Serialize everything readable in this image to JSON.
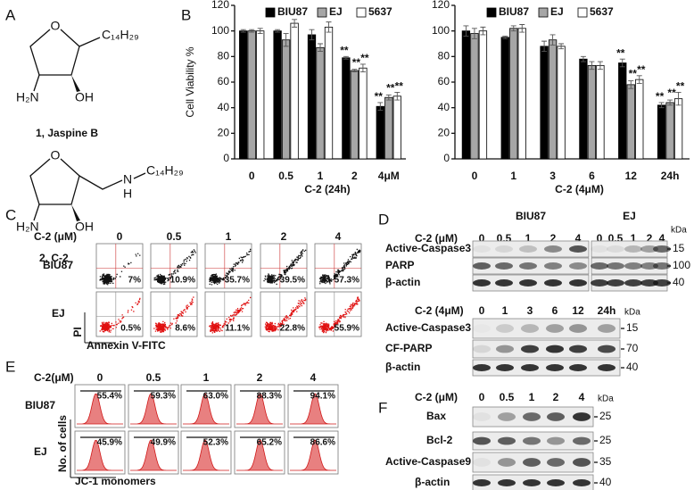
{
  "panels": {
    "a": {
      "label": "A",
      "compound1": {
        "substituent": "C₁₄H₂₉",
        "amine": "H₂N",
        "hydroxyl": "OH",
        "oxygen": "O",
        "caption": "1,  Jaspine B"
      },
      "compound2": {
        "substituent": "C₁₄H₂₉",
        "nitrogen": "N",
        "hydrogen": "H",
        "amine": "H₂N",
        "hydroxyl": "OH",
        "oxygen": "O",
        "caption": "2, C-2"
      }
    },
    "b": {
      "label": "B"
    },
    "c": {
      "label": "C",
      "treatment": "C-2 (μM)",
      "doses": [
        "0",
        "0.5",
        "1",
        "2",
        "4"
      ],
      "rows": [
        {
          "name": "BIU87",
          "values": [
            "7%",
            "10.9%",
            "35.7%",
            "39.5%",
            "57.3%"
          ]
        },
        {
          "name": "EJ",
          "values": [
            "0.5%",
            "8.6%",
            "11.1%",
            "22.8%",
            "55.9%"
          ]
        }
      ],
      "y_label": "PI",
      "x_label": "Annexin V-FITC"
    },
    "d": {
      "label": "D",
      "top": {
        "treatment": "C-2 (μM)",
        "unit": "kDa",
        "groups": [
          {
            "name": "BIU87",
            "lanes": [
              "0",
              "0.5",
              "1",
              "2",
              "4"
            ]
          },
          {
            "name": "EJ",
            "lanes": [
              "0",
              "0.5",
              "1",
              "2",
              "4"
            ]
          }
        ],
        "rows": [
          {
            "name": "Active-Caspase3",
            "kda": "15"
          },
          {
            "name": "PARP",
            "kda": "100"
          },
          {
            "name": "β-actin",
            "kda": "40"
          }
        ]
      },
      "bottom": {
        "treatment": "C-2 (4μM)",
        "unit": "kDa",
        "lanes": [
          "0",
          "1",
          "3",
          "6",
          "12",
          "24h"
        ],
        "rows": [
          {
            "name": "Active-Caspase3",
            "kda": "15"
          },
          {
            "name": "CF-PARP",
            "kda": "70"
          },
          {
            "name": "β-actin",
            "kda": "40"
          }
        ]
      }
    },
    "e": {
      "label": "E",
      "treatment": "C-2(μM)",
      "doses": [
        "0",
        "0.5",
        "1",
        "2",
        "4"
      ],
      "rows": [
        {
          "name": "BIU87",
          "values": [
            "55.4%",
            "59.3%",
            "63.0%",
            "88.3%",
            "94.1%"
          ]
        },
        {
          "name": "EJ",
          "values": [
            "45.9%",
            "49.9%",
            "52.3%",
            "65.2%",
            "86.6%"
          ]
        }
      ],
      "y_label": "No. of cells",
      "x_label": "JC-1 monomers"
    },
    "f": {
      "label": "F",
      "treatment": "C-2 (μM)",
      "unit": "kDa",
      "lanes": [
        "0",
        "0.5",
        "1",
        "2",
        "4"
      ],
      "rows": [
        {
          "name": "Bax",
          "kda": "25"
        },
        {
          "name": "Bcl-2",
          "kda": "25"
        },
        {
          "name": "Active-Caspase9",
          "kda": "35"
        },
        {
          "name": "β-actin",
          "kda": "40"
        }
      ]
    }
  },
  "chart_data": [
    {
      "type": "bar",
      "y_label": "Cell Viability %",
      "x_label": "C-2  (24h)",
      "categories": [
        "0",
        "0.5",
        "1",
        "2",
        "4μM"
      ],
      "ylim": [
        0,
        120
      ],
      "yticks": [
        0,
        20,
        40,
        60,
        80,
        100,
        120
      ],
      "legend": "top",
      "series": [
        {
          "name": "BIU87",
          "color": "#000000",
          "values": [
            100,
            100,
            97,
            79,
            41
          ],
          "errors": [
            1,
            1,
            4,
            1,
            3
          ],
          "significance": [
            null,
            null,
            null,
            "**",
            "**"
          ]
        },
        {
          "name": "EJ",
          "color": "#a6a6a6",
          "values": [
            100,
            93,
            87,
            69,
            48
          ],
          "errors": [
            1,
            5,
            3,
            1,
            2
          ],
          "significance": [
            null,
            null,
            null,
            "**",
            "**"
          ]
        },
        {
          "name": "5637",
          "color": "#ffffff",
          "values": [
            100,
            106,
            103,
            71,
            49
          ],
          "errors": [
            2,
            3,
            4,
            3,
            3
          ],
          "significance": [
            null,
            null,
            null,
            "**",
            "**"
          ]
        }
      ]
    },
    {
      "type": "bar",
      "x_label": "C-2  (4μM)",
      "categories": [
        "0",
        "1",
        "3",
        "6",
        "12",
        "24h"
      ],
      "ylim": [
        0,
        120
      ],
      "yticks": [
        0,
        20,
        40,
        60,
        80,
        100,
        120
      ],
      "legend": "top",
      "series": [
        {
          "name": "BIU87",
          "color": "#000000",
          "values": [
            100,
            95,
            88,
            78,
            75,
            42
          ],
          "errors": [
            4,
            1,
            4,
            2,
            3,
            2
          ],
          "significance": [
            null,
            null,
            null,
            null,
            "**",
            "**"
          ]
        },
        {
          "name": "EJ",
          "color": "#a6a6a6",
          "values": [
            98,
            102,
            93,
            73,
            58,
            44
          ],
          "errors": [
            4,
            2,
            4,
            3,
            3,
            2
          ],
          "significance": [
            null,
            null,
            null,
            null,
            "**",
            "**"
          ]
        },
        {
          "name": "5637",
          "color": "#ffffff",
          "values": [
            100,
            102,
            88,
            73,
            62,
            47
          ],
          "errors": [
            3,
            3,
            2,
            3,
            3,
            5
          ],
          "significance": [
            null,
            null,
            null,
            null,
            "**",
            "**"
          ]
        }
      ]
    }
  ]
}
